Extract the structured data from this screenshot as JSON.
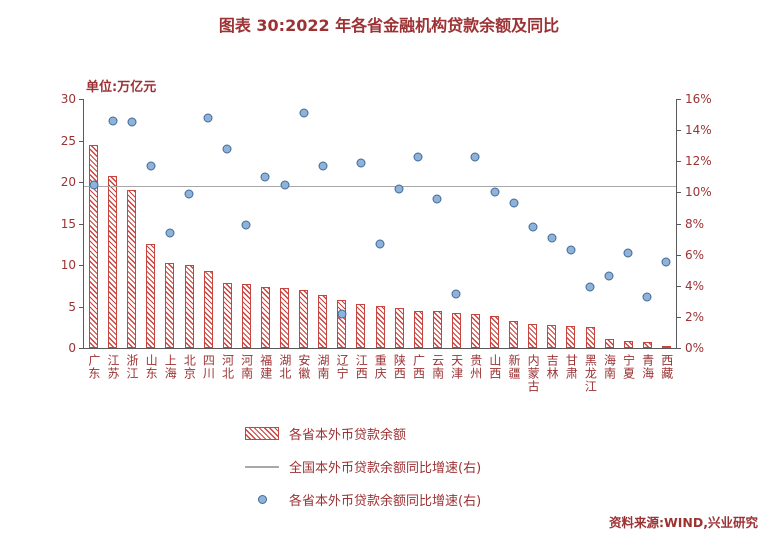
{
  "title": "图表 30:2022 年各省金融机构贷款余额及同比",
  "unit_label": "单位:万亿元",
  "source": "资料来源:WIND,兴业研究",
  "legend": [
    {
      "type": "hatched-bar",
      "label": "各省本外币贷款余额"
    },
    {
      "type": "line",
      "label": "全国本外币贷款余额同比增速(右)"
    },
    {
      "type": "dot",
      "label": "各省本外币贷款余额同比增速(右)"
    }
  ],
  "colors": {
    "accent": "#9c3234",
    "bar": "#c8443f",
    "dot_fill": "#8fb2d8",
    "dot_edge": "#41699b",
    "line": "#a8a8a8",
    "axis": "#595959"
  },
  "chart_data": {
    "type": "bar",
    "title": "图表 30:2022 年各省金融机构贷款余额及同比",
    "xlabel": "",
    "ylabel_left": "万亿元",
    "ylabel_right": "%",
    "ylim_left": [
      0,
      30
    ],
    "left_ticks": [
      0,
      5,
      10,
      15,
      20,
      25,
      30
    ],
    "ylim_right": [
      0,
      16
    ],
    "right_ticks": [
      "0%",
      "2%",
      "4%",
      "6%",
      "8%",
      "10%",
      "12%",
      "14%",
      "16%"
    ],
    "grid": "off",
    "legend_position": "bottom",
    "categories": [
      "广东",
      "江苏",
      "浙江",
      "山东",
      "上海",
      "北京",
      "四川",
      "河北",
      "河南",
      "福建",
      "湖北",
      "安徽",
      "湖南",
      "辽宁",
      "江西",
      "重庆",
      "陕西",
      "广西",
      "云南",
      "天津",
      "贵州",
      "山西",
      "新疆",
      "内蒙古",
      "吉林",
      "甘肃",
      "黑龙江",
      "海南",
      "宁夏",
      "青海",
      "西藏"
    ],
    "series": [
      {
        "name": "各省本外币贷款余额",
        "type": "bar",
        "axis": "left",
        "unit": "万亿元",
        "values": [
          24.5,
          20.7,
          19.0,
          12.5,
          10.3,
          10.0,
          9.3,
          7.8,
          7.7,
          7.4,
          7.2,
          7.0,
          6.4,
          5.8,
          5.3,
          5.1,
          4.8,
          4.5,
          4.4,
          4.2,
          4.1,
          3.8,
          3.2,
          2.9,
          2.8,
          2.6,
          2.5,
          1.1,
          0.9,
          0.7,
          0.3
        ]
      },
      {
        "name": "各省本外币贷款余额同比增速(右)",
        "type": "scatter",
        "axis": "right",
        "unit": "%",
        "values": [
          10.5,
          14.6,
          14.5,
          11.7,
          7.4,
          9.9,
          14.8,
          12.8,
          7.9,
          11.0,
          10.5,
          15.1,
          11.7,
          2.2,
          11.9,
          6.7,
          10.2,
          12.3,
          9.6,
          3.5,
          12.3,
          10.0,
          9.3,
          7.8,
          7.1,
          6.3,
          3.9,
          4.6,
          6.1,
          3.3,
          5.5
        ]
      },
      {
        "name": "全国本外币贷款余额同比增速(右)",
        "type": "hline",
        "axis": "right",
        "unit": "%",
        "value": 10.4
      }
    ]
  }
}
